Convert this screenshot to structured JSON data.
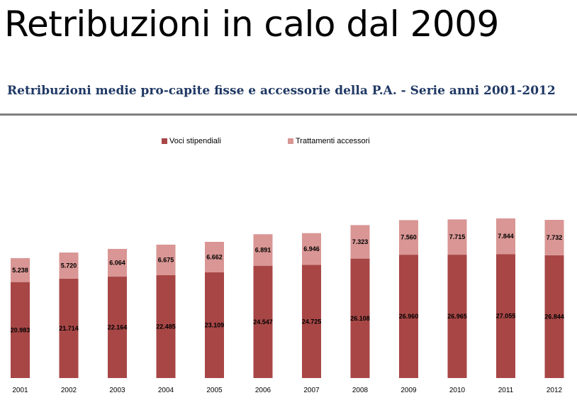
{
  "slide": {
    "title": "Retribuzioni in calo dal 2009"
  },
  "chart_heading": "Retribuzioni medie pro-capite fisse e accessorie della P.A. - Serie anni 2001-2012",
  "colors": {
    "voci": "#a84646",
    "trattamenti": "#d99694",
    "heading": "#1f3864",
    "rule": "#7f7f7f"
  },
  "chart_data": {
    "type": "bar",
    "stacked": true,
    "title": "Retribuzioni medie pro-capite fisse e accessorie della P.A. - Serie anni 2001-2012",
    "legend_position": "top",
    "grid": false,
    "categories": [
      "2001",
      "2002",
      "2003",
      "2004",
      "2005",
      "2006",
      "2007",
      "2008",
      "2009",
      "2010",
      "2011",
      "2012"
    ],
    "series": [
      {
        "name": "Voci stipendiali",
        "values": [
          20983,
          21714,
          22164,
          22485,
          23109,
          24547,
          24725,
          26108,
          26960,
          26965,
          27055,
          26844
        ],
        "labels": [
          "20.983",
          "21.714",
          "22.164",
          "22.485",
          "23.109",
          "24.547",
          "24.725",
          "26.108",
          "26.960",
          "26.965",
          "27.055",
          "26.844"
        ]
      },
      {
        "name": "Trattamenti accessori",
        "values": [
          5238,
          5720,
          6064,
          6675,
          6662,
          6891,
          6946,
          7323,
          7560,
          7715,
          7844,
          7732
        ],
        "labels": [
          "5.238",
          "5.720",
          "6.064",
          "6.675",
          "6.662",
          "6.891",
          "6.946",
          "7.323",
          "7.560",
          "7.715",
          "7.844",
          "7.732"
        ]
      }
    ]
  }
}
